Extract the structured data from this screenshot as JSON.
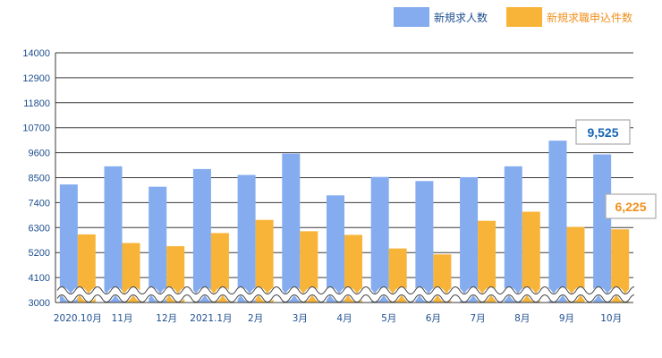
{
  "chart_data": {
    "type": "bar",
    "categories": [
      "2020.10月",
      "11月",
      "12月",
      "2021.1月",
      "2月",
      "3月",
      "4月",
      "5月",
      "6月",
      "7月",
      "8月",
      "9月",
      "10月"
    ],
    "series": [
      {
        "name": "新規求人数",
        "color": "#84acef",
        "values": [
          8200,
          9000,
          8100,
          8880,
          8620,
          9560,
          7720,
          8530,
          8350,
          8520,
          9000,
          10130,
          9525
        ]
      },
      {
        "name": "新規求職申込件数",
        "color": "#f8b438",
        "values": [
          6000,
          5620,
          5480,
          6060,
          6640,
          6140,
          5980,
          5380,
          5120,
          6600,
          7000,
          6330,
          6225
        ]
      }
    ],
    "yticks": [
      3000,
      4100,
      5200,
      6300,
      7400,
      8500,
      9600,
      10700,
      11800,
      12900,
      14000
    ],
    "ylim": [
      3000,
      14000
    ],
    "axis_break": true,
    "grid": true,
    "legend_position": "top-right",
    "callouts": [
      {
        "text": "9,525",
        "color": "#1565b3",
        "border": "#aaaaaa"
      },
      {
        "text": "6,225",
        "color": "#f0901c",
        "border": "#aaaaaa"
      }
    ]
  }
}
